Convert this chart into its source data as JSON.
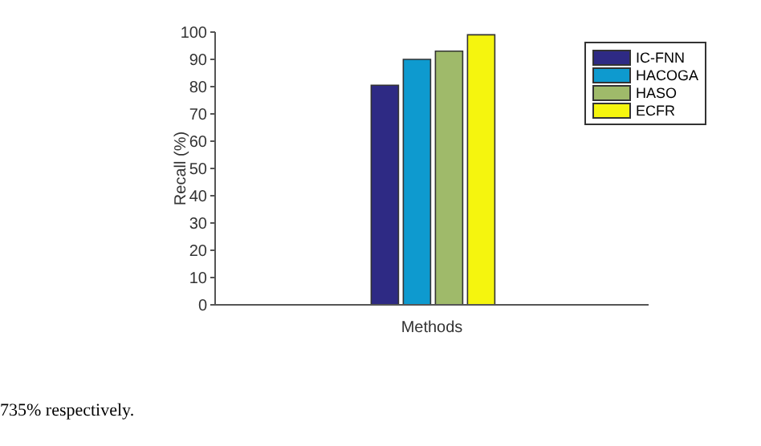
{
  "chart_data": {
    "type": "bar",
    "xlabel": "Methods",
    "ylabel": "Recall (%)",
    "categories": [
      null
    ],
    "series": [
      {
        "name": "IC-FNN",
        "color": "#2e2a84",
        "values": [
          80.5
        ]
      },
      {
        "name": "HACOGA",
        "color": "#0e9acf",
        "values": [
          90
        ]
      },
      {
        "name": "HASO",
        "color": "#9fba6a",
        "values": [
          93
        ]
      },
      {
        "name": "ECFR",
        "color": "#f5f50e",
        "values": [
          99
        ]
      }
    ],
    "ylim": [
      0,
      100
    ],
    "yticks": [
      0,
      10,
      20,
      30,
      40,
      50,
      60,
      70,
      80,
      90,
      100
    ],
    "grid": false,
    "legend": "top right",
    "annotations": [
      "735% respectively."
    ]
  }
}
